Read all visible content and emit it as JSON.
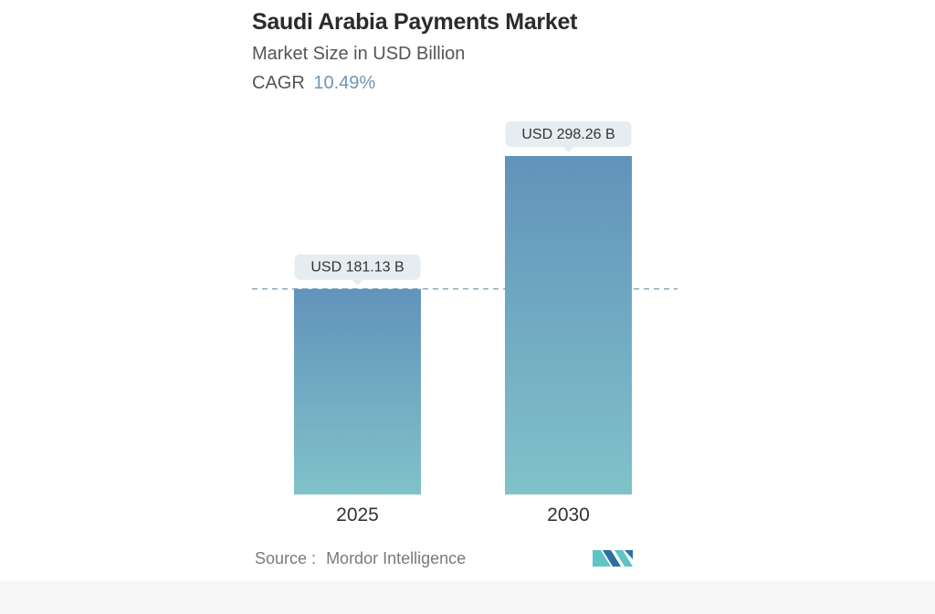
{
  "header": {
    "title": "Saudi Arabia Payments Market",
    "subtitle": "Market Size in USD Billion",
    "cagr_label": "CAGR",
    "cagr_value": "10.49%"
  },
  "footer": {
    "source_label": "Source :",
    "source_name": "Mordor Intelligence",
    "logo_icon": "mordor-intelligence-logo-icon"
  },
  "colors": {
    "bar_top": "#6293bb",
    "bar_bottom": "#80c2c9",
    "label_bg": "#e6edf0",
    "dashed_line": "#7fa6b5",
    "cagr_accent": "#6f95b4",
    "logo_dark": "#2e6fa0",
    "logo_light": "#5fc3c8"
  },
  "chart_data": {
    "type": "bar",
    "categories": [
      "2025",
      "2030"
    ],
    "values": [
      181.13,
      298.26
    ],
    "data_labels": [
      "USD 181.13 B",
      "USD 298.26 B"
    ],
    "ylim": [
      0,
      298.26
    ],
    "reference_line_value": 181.13,
    "grid": false,
    "legend": "none"
  }
}
